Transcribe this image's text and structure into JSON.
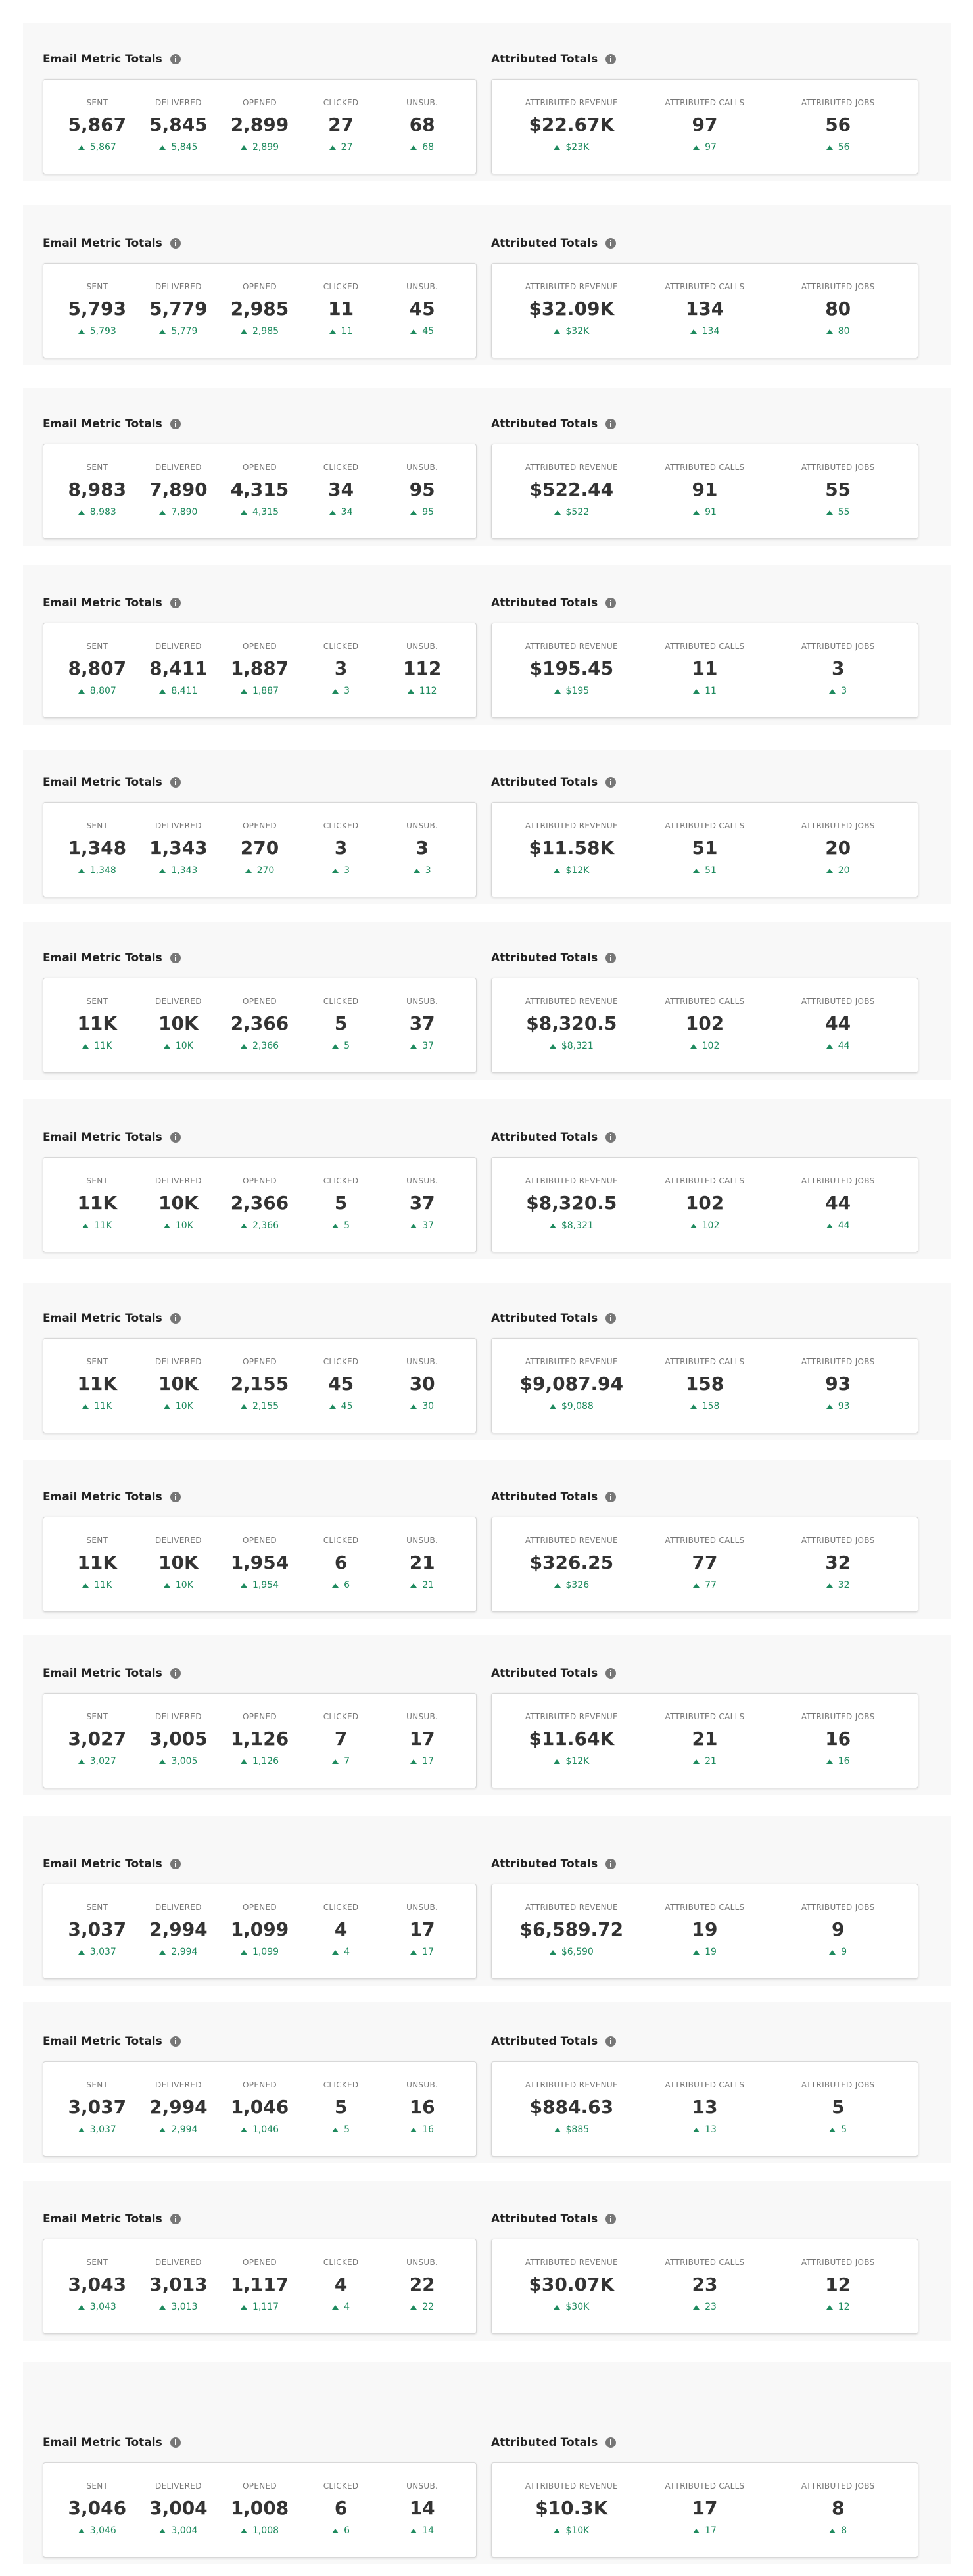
{
  "panels": [
    {
      "email": {
        "title": "Email Metric Totals",
        "metrics": [
          [
            "SENT",
            "5,867",
            "5,867"
          ],
          [
            "DELIVERED",
            "5,845",
            "5,845"
          ],
          [
            "OPENED",
            "2,899",
            "2,899"
          ],
          [
            "CLICKED",
            "27",
            "27"
          ],
          [
            "UNSUB.",
            "68",
            "68"
          ]
        ]
      },
      "attributed": {
        "title": "Attributed Totals",
        "metrics": [
          [
            "ATTRIBUTED REVENUE",
            "$22.67K",
            "$23K"
          ],
          [
            "ATTRIBUTED CALLS",
            "97",
            "97"
          ],
          [
            "ATTRIBUTED JOBS",
            "56",
            "56"
          ]
        ]
      }
    },
    {
      "email": {
        "title": "Email Metric Totals",
        "metrics": [
          [
            "SENT",
            "5,793",
            "5,793"
          ],
          [
            "DELIVERED",
            "5,779",
            "5,779"
          ],
          [
            "OPENED",
            "2,985",
            "2,985"
          ],
          [
            "CLICKED",
            "11",
            "11"
          ],
          [
            "UNSUB.",
            "45",
            "45"
          ]
        ]
      },
      "attributed": {
        "title": "Attributed Totals",
        "metrics": [
          [
            "ATTRIBUTED REVENUE",
            "$32.09K",
            "$32K"
          ],
          [
            "ATTRIBUTED CALLS",
            "134",
            "134"
          ],
          [
            "ATTRIBUTED JOBS",
            "80",
            "80"
          ]
        ]
      }
    },
    {
      "email": {
        "title": "Email Metric Totals",
        "metrics": [
          [
            "SENT",
            "8,983",
            "8,983"
          ],
          [
            "DELIVERED",
            "7,890",
            "7,890"
          ],
          [
            "OPENED",
            "4,315",
            "4,315"
          ],
          [
            "CLICKED",
            "34",
            "34"
          ],
          [
            "UNSUB.",
            "95",
            "95"
          ]
        ]
      },
      "attributed": {
        "title": "Attributed Totals",
        "metrics": [
          [
            "ATTRIBUTED REVENUE",
            "$522.44",
            "$522"
          ],
          [
            "ATTRIBUTED CALLS",
            "91",
            "91"
          ],
          [
            "ATTRIBUTED JOBS",
            "55",
            "55"
          ]
        ]
      }
    },
    {
      "email": {
        "title": "Email Metric Totals",
        "metrics": [
          [
            "SENT",
            "8,807",
            "8,807"
          ],
          [
            "DELIVERED",
            "8,411",
            "8,411"
          ],
          [
            "OPENED",
            "1,887",
            "1,887"
          ],
          [
            "CLICKED",
            "3",
            "3"
          ],
          [
            "UNSUB.",
            "112",
            "112"
          ]
        ]
      },
      "attributed": {
        "title": "Attributed Totals",
        "metrics": [
          [
            "ATTRIBUTED REVENUE",
            "$195.45",
            "$195"
          ],
          [
            "ATTRIBUTED CALLS",
            "11",
            "11"
          ],
          [
            "ATTRIBUTED JOBS",
            "3",
            "3"
          ]
        ]
      }
    },
    {
      "email": {
        "title": "Email Metric Totals",
        "metrics": [
          [
            "SENT",
            "1,348",
            "1,348"
          ],
          [
            "DELIVERED",
            "1,343",
            "1,343"
          ],
          [
            "OPENED",
            "270",
            "270"
          ],
          [
            "CLICKED",
            "3",
            "3"
          ],
          [
            "UNSUB.",
            "3",
            "3"
          ]
        ]
      },
      "attributed": {
        "title": "Attributed Totals",
        "metrics": [
          [
            "ATTRIBUTED REVENUE",
            "$11.58K",
            "$12K"
          ],
          [
            "ATTRIBUTED CALLS",
            "51",
            "51"
          ],
          [
            "ATTRIBUTED JOBS",
            "20",
            "20"
          ]
        ]
      }
    },
    {
      "email": {
        "title": "Email Metric Totals",
        "metrics": [
          [
            "SENT",
            "11K",
            "11K"
          ],
          [
            "DELIVERED",
            "10K",
            "10K"
          ],
          [
            "OPENED",
            "2,366",
            "2,366"
          ],
          [
            "CLICKED",
            "5",
            "5"
          ],
          [
            "UNSUB.",
            "37",
            "37"
          ]
        ]
      },
      "attributed": {
        "title": "Attributed Totals",
        "metrics": [
          [
            "ATTRIBUTED REVENUE",
            "$8,320.5",
            "$8,321"
          ],
          [
            "ATTRIBUTED CALLS",
            "102",
            "102"
          ],
          [
            "ATTRIBUTED JOBS",
            "44",
            "44"
          ]
        ]
      }
    },
    {
      "email": {
        "title": "Email Metric Totals",
        "metrics": [
          [
            "SENT",
            "11K",
            "11K"
          ],
          [
            "DELIVERED",
            "10K",
            "10K"
          ],
          [
            "OPENED",
            "2,366",
            "2,366"
          ],
          [
            "CLICKED",
            "5",
            "5"
          ],
          [
            "UNSUB.",
            "37",
            "37"
          ]
        ]
      },
      "attributed": {
        "title": "Attributed Totals",
        "metrics": [
          [
            "ATTRIBUTED REVENUE",
            "$8,320.5",
            "$8,321"
          ],
          [
            "ATTRIBUTED CALLS",
            "102",
            "102"
          ],
          [
            "ATTRIBUTED JOBS",
            "44",
            "44"
          ]
        ]
      }
    },
    {
      "email": {
        "title": "Email Metric Totals",
        "metrics": [
          [
            "SENT",
            "11K",
            "11K"
          ],
          [
            "DELIVERED",
            "10K",
            "10K"
          ],
          [
            "OPENED",
            "2,155",
            "2,155"
          ],
          [
            "CLICKED",
            "45",
            "45"
          ],
          [
            "UNSUB.",
            "30",
            "30"
          ]
        ]
      },
      "attributed": {
        "title": "Attributed Totals",
        "metrics": [
          [
            "ATTRIBUTED REVENUE",
            "$9,087.94",
            "$9,088"
          ],
          [
            "ATTRIBUTED CALLS",
            "158",
            "158"
          ],
          [
            "ATTRIBUTED JOBS",
            "93",
            "93"
          ]
        ]
      }
    },
    {
      "email": {
        "title": "Email Metric Totals",
        "metrics": [
          [
            "SENT",
            "11K",
            "11K"
          ],
          [
            "DELIVERED",
            "10K",
            "10K"
          ],
          [
            "OPENED",
            "1,954",
            "1,954"
          ],
          [
            "CLICKED",
            "6",
            "6"
          ],
          [
            "UNSUB.",
            "21",
            "21"
          ]
        ]
      },
      "attributed": {
        "title": "Attributed Totals",
        "metrics": [
          [
            "ATTRIBUTED REVENUE",
            "$326.25",
            "$326"
          ],
          [
            "ATTRIBUTED CALLS",
            "77",
            "77"
          ],
          [
            "ATTRIBUTED JOBS",
            "32",
            "32"
          ]
        ]
      }
    },
    {
      "email": {
        "title": "Email Metric Totals",
        "metrics": [
          [
            "SENT",
            "3,027",
            "3,027"
          ],
          [
            "DELIVERED",
            "3,005",
            "3,005"
          ],
          [
            "OPENED",
            "1,126",
            "1,126"
          ],
          [
            "CLICKED",
            "7",
            "7"
          ],
          [
            "UNSUB.",
            "17",
            "17"
          ]
        ]
      },
      "attributed": {
        "title": "Attributed Totals",
        "metrics": [
          [
            "ATTRIBUTED REVENUE",
            "$11.64K",
            "$12K"
          ],
          [
            "ATTRIBUTED CALLS",
            "21",
            "21"
          ],
          [
            "ATTRIBUTED JOBS",
            "16",
            "16"
          ]
        ]
      }
    },
    {
      "email": {
        "title": "Email Metric Totals",
        "metrics": [
          [
            "SENT",
            "3,037",
            "3,037"
          ],
          [
            "DELIVERED",
            "2,994",
            "2,994"
          ],
          [
            "OPENED",
            "1,099",
            "1,099"
          ],
          [
            "CLICKED",
            "4",
            "4"
          ],
          [
            "UNSUB.",
            "17",
            "17"
          ]
        ]
      },
      "attributed": {
        "title": "Attributed Totals",
        "metrics": [
          [
            "ATTRIBUTED REVENUE",
            "$6,589.72",
            "$6,590"
          ],
          [
            "ATTRIBUTED CALLS",
            "19",
            "19"
          ],
          [
            "ATTRIBUTED JOBS",
            "9",
            "9"
          ]
        ]
      }
    },
    {
      "email": {
        "title": "Email Metric Totals",
        "metrics": [
          [
            "SENT",
            "3,037",
            "3,037"
          ],
          [
            "DELIVERED",
            "2,994",
            "2,994"
          ],
          [
            "OPENED",
            "1,046",
            "1,046"
          ],
          [
            "CLICKED",
            "5",
            "5"
          ],
          [
            "UNSUB.",
            "16",
            "16"
          ]
        ]
      },
      "attributed": {
        "title": "Attributed Totals",
        "metrics": [
          [
            "ATTRIBUTED REVENUE",
            "$884.63",
            "$885"
          ],
          [
            "ATTRIBUTED CALLS",
            "13",
            "13"
          ],
          [
            "ATTRIBUTED JOBS",
            "5",
            "5"
          ]
        ]
      }
    },
    {
      "email": {
        "title": "Email Metric Totals",
        "metrics": [
          [
            "SENT",
            "3,043",
            "3,043"
          ],
          [
            "DELIVERED",
            "3,013",
            "3,013"
          ],
          [
            "OPENED",
            "1,117",
            "1,117"
          ],
          [
            "CLICKED",
            "4",
            "4"
          ],
          [
            "UNSUB.",
            "22",
            "22"
          ]
        ]
      },
      "attributed": {
        "title": "Attributed Totals",
        "metrics": [
          [
            "ATTRIBUTED REVENUE",
            "$30.07K",
            "$30K"
          ],
          [
            "ATTRIBUTED CALLS",
            "23",
            "23"
          ],
          [
            "ATTRIBUTED JOBS",
            "12",
            "12"
          ]
        ]
      }
    },
    {
      "email": {
        "title": "Email Metric Totals",
        "metrics": [
          [
            "SENT",
            "3,046",
            "3,046"
          ],
          [
            "DELIVERED",
            "3,004",
            "3,004"
          ],
          [
            "OPENED",
            "1,008",
            "1,008"
          ],
          [
            "CLICKED",
            "6",
            "6"
          ],
          [
            "UNSUB.",
            "14",
            "14"
          ]
        ]
      },
      "attributed": {
        "title": "Attributed Totals",
        "metrics": [
          [
            "ATTRIBUTED REVENUE",
            "$10.3K",
            "$10K"
          ],
          [
            "ATTRIBUTED CALLS",
            "17",
            "17"
          ],
          [
            "ATTRIBUTED JOBS",
            "8",
            "8"
          ]
        ]
      }
    }
  ]
}
